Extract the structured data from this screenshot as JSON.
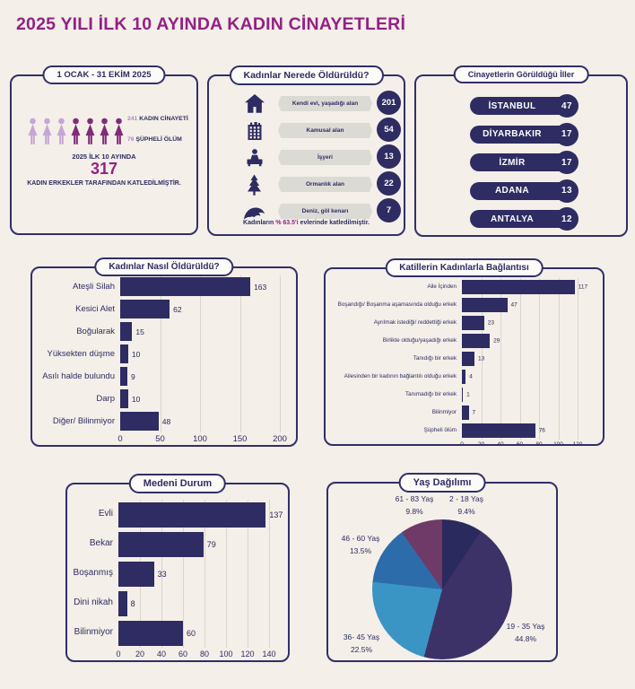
{
  "page": {
    "title": "2025 YILI İLK 10 AYINDA KADIN CİNAYETLERİ"
  },
  "colors": {
    "navy": "#2e2c62",
    "magenta": "#932185",
    "cream": "#f4efe8",
    "light_purple_number": "#b088c6",
    "lavender_icon": "#c5a6d4",
    "dark_plum_icon": "#802b78",
    "ribbon_gray": "#dcdad4"
  },
  "summary_panel": {
    "header": "1 OCAK - 31 EKİM 2025",
    "pictogram": {
      "light_count": 3,
      "dark_count": 4
    },
    "stat1_value": "241",
    "stat1_label": "KADIN CİNAYETİ",
    "stat2_value": "76",
    "stat2_label": "ŞÜPHELİ ÖLÜM",
    "subtitle": "2025 İLK 10 AYINDA",
    "total": "317",
    "footer": "KADIN ERKEKLER TARAFINDAN KATLEDİLMİŞTİR."
  },
  "location_panel": {
    "header": "Kadınlar Nerede Öldürüldü?",
    "rows": [
      {
        "icon": "house-icon",
        "label": "Kendi evi, yaşadığı alan",
        "value": 201
      },
      {
        "icon": "building-icon",
        "label": "Kamusal alan",
        "value": 54
      },
      {
        "icon": "workplace-icon",
        "label": "İşyeri",
        "value": 13
      },
      {
        "icon": "pine-tree-icon",
        "label": "Ormanlık alan",
        "value": 22
      },
      {
        "icon": "wave-icon",
        "label": "Deniz, göl kenarı",
        "value": 7
      }
    ],
    "note_prefix": "Kadınların ",
    "note_highlight": "% 63.5'i",
    "note_suffix": " evlerinde katledilmiştir."
  },
  "cities_panel": {
    "header": "Cinayetlerin Görüldüğü İller",
    "items": [
      {
        "name": "İSTANBUL",
        "value": 47
      },
      {
        "name": "DİYARBAKIR",
        "value": 17
      },
      {
        "name": "İZMİR",
        "value": 17
      },
      {
        "name": "ADANA",
        "value": 13
      },
      {
        "name": "ANTALYA",
        "value": 12
      }
    ]
  },
  "chart_data": [
    {
      "type": "bar",
      "orientation": "horizontal",
      "title": "Kadınlar Nasıl Öldürüldü?",
      "categories": [
        "Ateşli Silah",
        "Kesici Alet",
        "Boğularak",
        "Yüksekten düşme",
        "Asılı halde bulundu",
        "Darp",
        "Diğer/ Bilinmiyor"
      ],
      "values": [
        163,
        62,
        15,
        10,
        9,
        10,
        48
      ],
      "xlim": [
        0,
        200
      ],
      "xticks": [
        0,
        50,
        100,
        150,
        200
      ],
      "bar_color": "#2e2c62",
      "grid": true
    },
    {
      "type": "bar",
      "orientation": "horizontal",
      "title": "Katillerin Kadınlarla Bağlantısı",
      "categories": [
        "Aile İçinden",
        "Boşandığı/ Boşanma aşamasında olduğu erkek",
        "Ayrılmak istediği/ reddettiği erkek",
        "Birlikte olduğu/yaşadığı erkek",
        "Tanıdığı bir erkek",
        "Ailesinden bir kadının bağlantılı olduğu erkek",
        "Tanımadığı bir erkek",
        "Bilinmiyor",
        "Şüpheli ölüm"
      ],
      "values": [
        117,
        47,
        23,
        29,
        13,
        4,
        1,
        7,
        76
      ],
      "xlim": [
        0,
        120
      ],
      "xticks": [
        0,
        20,
        40,
        60,
        80,
        100,
        120
      ],
      "bar_color": "#2e2c62",
      "grid": true
    },
    {
      "type": "bar",
      "orientation": "horizontal",
      "title": "Medeni Durum",
      "categories": [
        "Evli",
        "Bekar",
        "Boşanmış",
        "Dini nikah",
        "Bilinmiyor"
      ],
      "values": [
        137,
        79,
        33,
        8,
        60
      ],
      "xlim": [
        0,
        140
      ],
      "xticks": [
        0,
        20,
        40,
        60,
        80,
        100,
        120,
        140
      ],
      "bar_color": "#2e2c62",
      "grid": true
    },
    {
      "type": "pie",
      "title": "Yaş Dağılımı",
      "start_angle_deg": 0,
      "direction": "clockwise",
      "slices": [
        {
          "label": "2 - 18 Yaş",
          "pct": 9.4,
          "pct_label": "9.4%",
          "color": "#2b2a5e"
        },
        {
          "label": "19 - 35 Yaş",
          "pct": 44.8,
          "pct_label": "44.8%",
          "color": "#3c3268"
        },
        {
          "label": "36- 45 Yaş",
          "pct": 22.5,
          "pct_label": "22.5%",
          "color": "#3a95c5"
        },
        {
          "label": "46 - 60 Yaş",
          "pct": 13.5,
          "pct_label": "13.5%",
          "color": "#2d6cab"
        },
        {
          "label": "61 - 83 Yaş",
          "pct": 9.8,
          "pct_label": "9.8%",
          "color": "#6f3a67"
        }
      ]
    }
  ]
}
